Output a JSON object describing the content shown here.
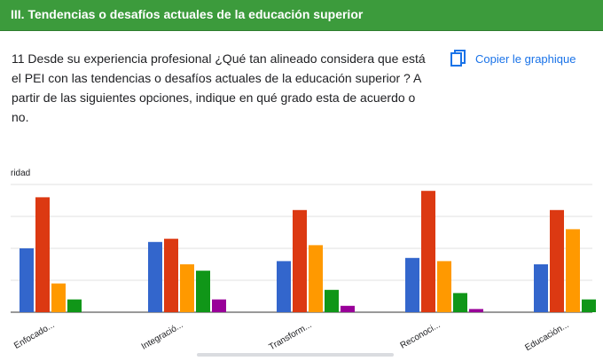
{
  "section": {
    "title": "III. Tendencias o desafíos actuales de la educación superior"
  },
  "question": {
    "text": "11 Desde su experiencia profesional ¿Qué tan alineado considera que está el PEI con las tendencias o desafíos actuales de la educación superior ? A partir de las siguientes opciones, indique en qué grado esta de acuerdo o no."
  },
  "copy_button": {
    "label": "Copier le graphique",
    "icon": "copy-icon"
  },
  "colors": {
    "header": "#3c9b3c",
    "accent": "#1a73e8"
  },
  "chart_data": {
    "type": "bar",
    "ylabel": "ridad",
    "categories": [
      "Enfocado...",
      "Integració...",
      "Transform...",
      "Reconoci...",
      "Educación..."
    ],
    "series": [
      {
        "color": "#3366cc",
        "values": [
          20,
          22,
          16,
          17,
          15
        ]
      },
      {
        "color": "#dc3912",
        "values": [
          36,
          23,
          32,
          38,
          32
        ]
      },
      {
        "color": "#ff9900",
        "values": [
          9,
          15,
          21,
          16,
          26
        ]
      },
      {
        "color": "#109618",
        "values": [
          4,
          13,
          7,
          6,
          4
        ]
      },
      {
        "color": "#990099",
        "values": [
          0,
          4,
          2,
          1,
          0
        ]
      }
    ],
    "ylim": [
      0,
      40
    ],
    "grid": true
  }
}
